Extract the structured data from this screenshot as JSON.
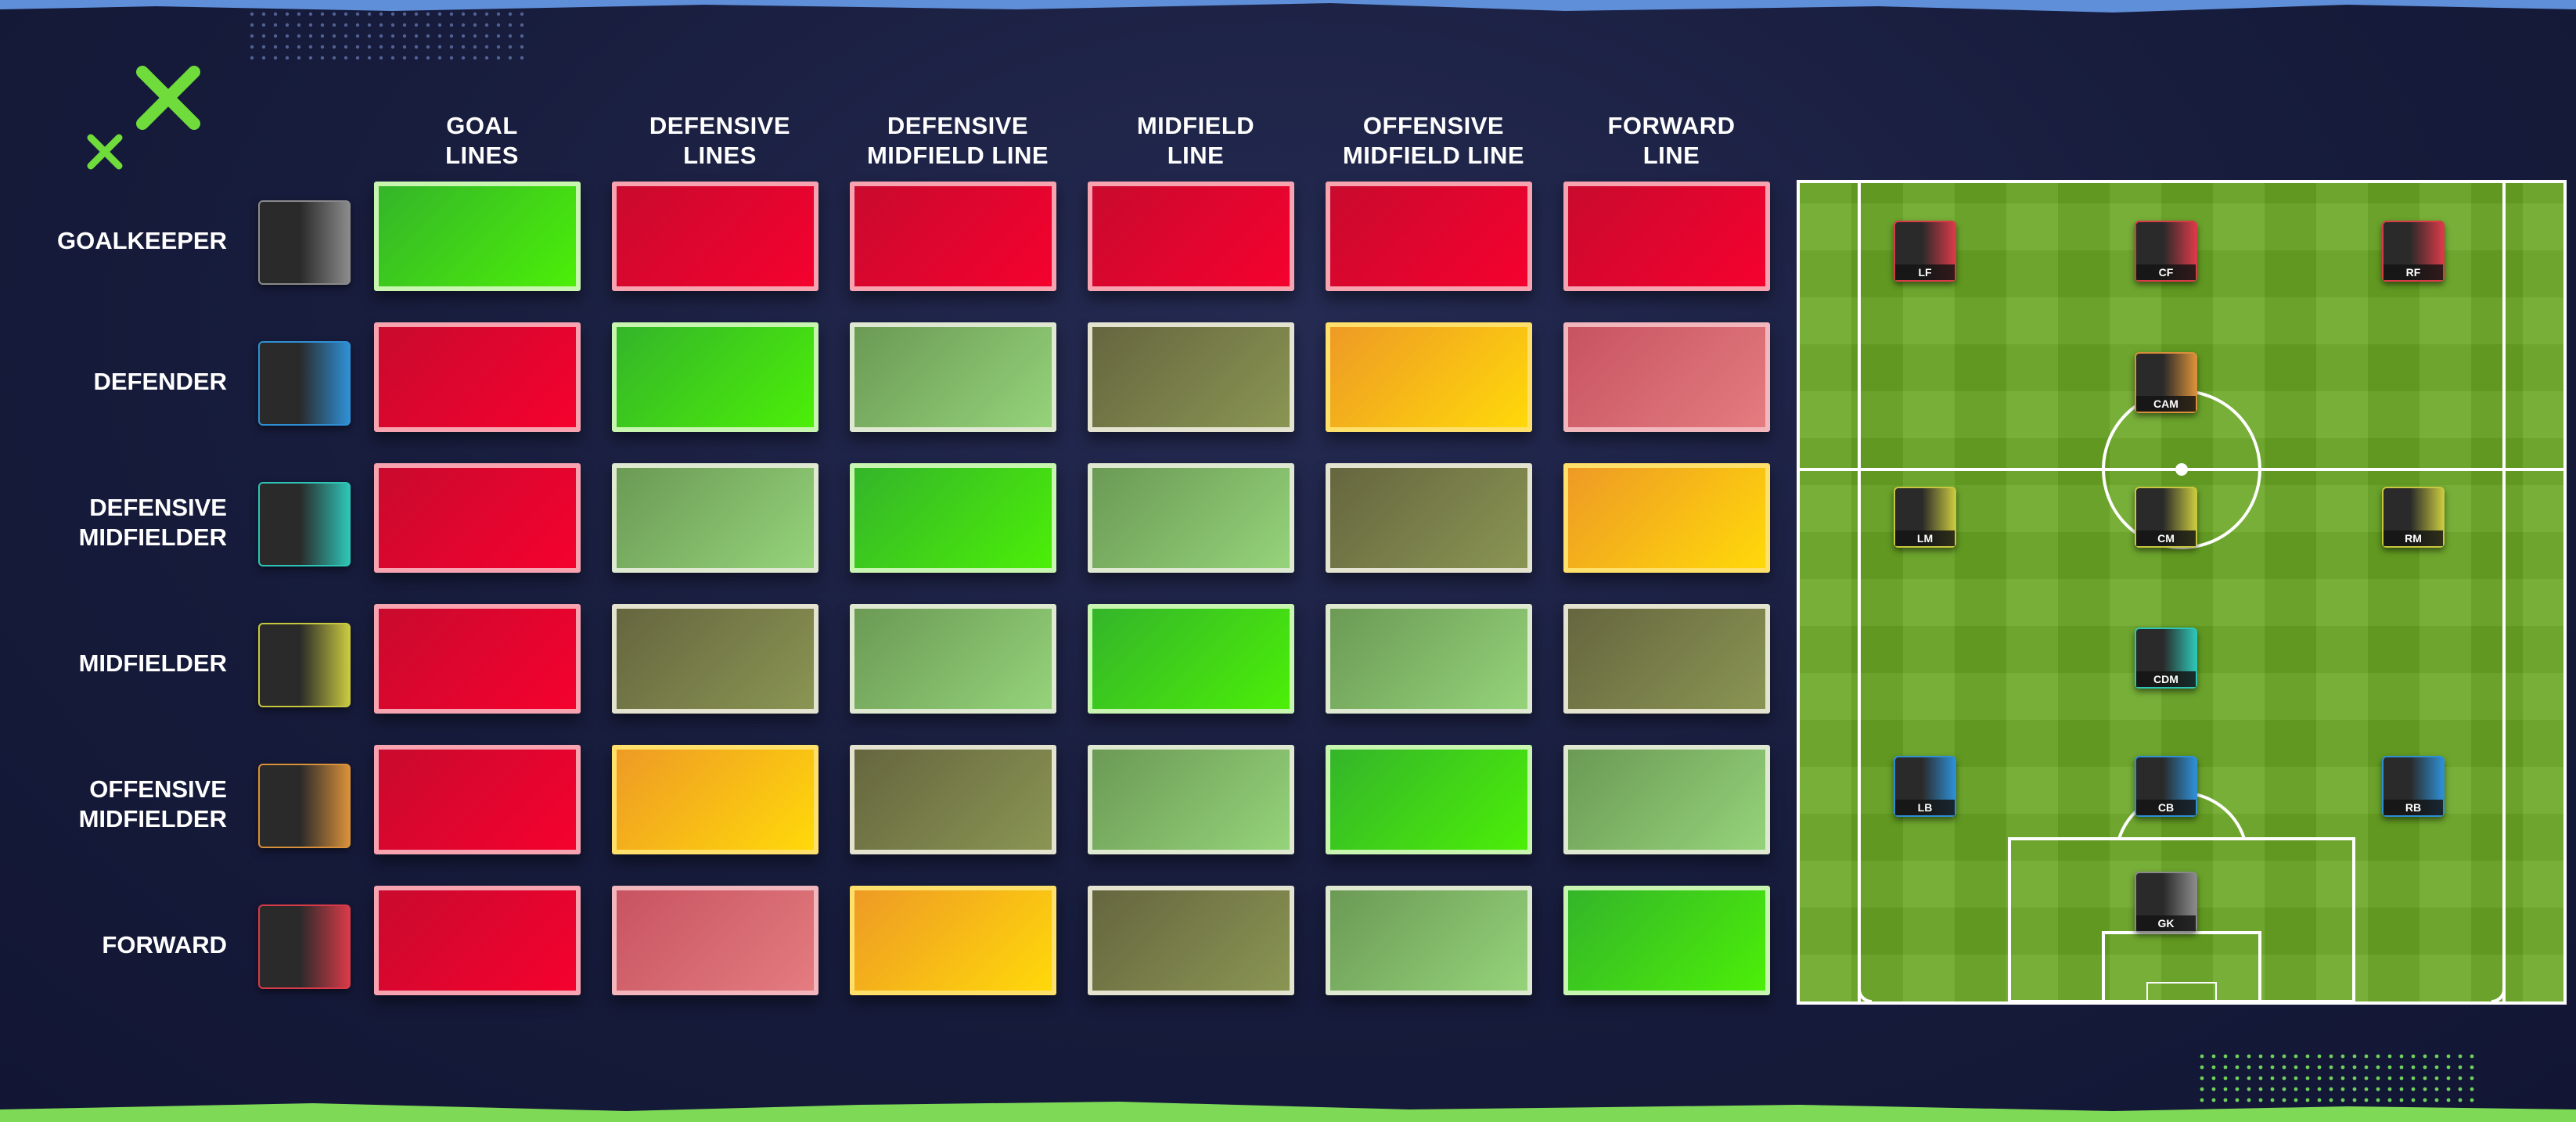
{
  "columns": [
    {
      "label": "GOAL\nLINES"
    },
    {
      "label": "DEFENSIVE\nLINES"
    },
    {
      "label": "DEFENSIVE\nMIDFIELD LINE"
    },
    {
      "label": "MIDFIELD\nLINE"
    },
    {
      "label": "OFFENSIVE\nMIDFIELD LINE"
    },
    {
      "label": "FORWARD\nLINE"
    }
  ],
  "rows": [
    {
      "label": "GOALKEEPER",
      "card_color": "#8a8a8a",
      "cells": [
        "green",
        "red",
        "red",
        "red",
        "red",
        "red"
      ]
    },
    {
      "label": "DEFENDER",
      "card_color": "#2f8fd4",
      "cells": [
        "red",
        "green",
        "light-green",
        "olive",
        "orange",
        "pink"
      ]
    },
    {
      "label": "DEFENSIVE\nMIDFIELDER",
      "card_color": "#2ec4b6",
      "cells": [
        "red",
        "light-green",
        "green",
        "light-green",
        "olive",
        "orange"
      ]
    },
    {
      "label": "MIDFIELDER",
      "card_color": "#c8c840",
      "cells": [
        "red",
        "olive",
        "light-green",
        "green",
        "light-green",
        "olive"
      ]
    },
    {
      "label": "OFFENSIVE\nMIDFIELDER",
      "card_color": "#d8903a",
      "cells": [
        "red",
        "orange",
        "olive",
        "light-green",
        "green",
        "light-green"
      ]
    },
    {
      "label": "FORWARD",
      "card_color": "#d83a48",
      "cells": [
        "red",
        "pink",
        "orange",
        "olive",
        "light-green",
        "green"
      ]
    }
  ],
  "legend_colors": {
    "green": {
      "from": "#34b52a",
      "to": "#4cef08",
      "border": "#c8f5b0"
    },
    "red": {
      "from": "#c90a2e",
      "to": "#f5012e",
      "border": "#f7a3b0"
    },
    "light-green": {
      "from": "#6b9a55",
      "to": "#95d37a",
      "border": "#dfe8d0"
    },
    "olive": {
      "from": "#66663f",
      "to": "#8a9553",
      "border": "#e3e3d0"
    },
    "orange": {
      "from": "#ee9a25",
      "to": "#ffd90a",
      "border": "#ffe06a"
    },
    "pink": {
      "from": "#c75461",
      "to": "#e47c80",
      "border": "#f2b7bc"
    }
  },
  "pitch_players": [
    {
      "pos": "LF",
      "color": "#d83a48"
    },
    {
      "pos": "CF",
      "color": "#d83a48"
    },
    {
      "pos": "RF",
      "color": "#d83a48"
    },
    {
      "pos": "CAM",
      "color": "#d8903a"
    },
    {
      "pos": "LM",
      "color": "#c8c840"
    },
    {
      "pos": "CM",
      "color": "#c8c840"
    },
    {
      "pos": "RM",
      "color": "#c8c840"
    },
    {
      "pos": "CDM",
      "color": "#2ec4b6"
    },
    {
      "pos": "LB",
      "color": "#2f8fd4"
    },
    {
      "pos": "CB",
      "color": "#2f8fd4"
    },
    {
      "pos": "RB",
      "color": "#2f8fd4"
    },
    {
      "pos": "GK",
      "color": "#8a8a8a"
    }
  ],
  "accent_colors": {
    "top_band": "#5f8fd8",
    "bottom_band": "#7ed957",
    "logo": "#6fdc3c",
    "dots": "#6fd05c"
  }
}
